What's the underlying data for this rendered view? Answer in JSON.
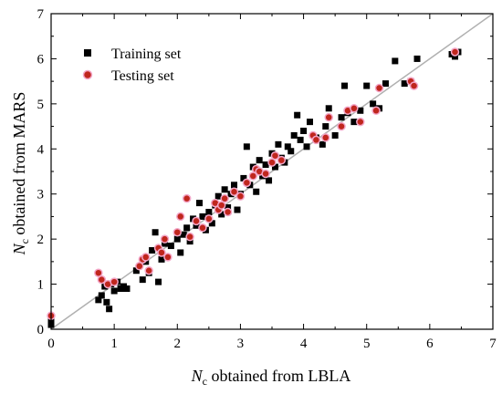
{
  "chart_data": {
    "type": "scatter",
    "xlabel": {
      "symbol": "N",
      "subscript": "c",
      "rest": " obtained from LBLA"
    },
    "ylabel": {
      "symbol": "N",
      "subscript": "c",
      "rest": " obtained from MARS"
    },
    "xlim": [
      0,
      7
    ],
    "ylim": [
      0,
      7
    ],
    "xticks": [
      "0",
      "1",
      "2",
      "3",
      "4",
      "5",
      "6",
      "7"
    ],
    "yticks": [
      "0",
      "1",
      "2",
      "3",
      "4",
      "5",
      "6",
      "7"
    ],
    "grid": false,
    "legend_position": "top-left",
    "reference_line": {
      "x": [
        0,
        7
      ],
      "y": [
        0,
        7
      ],
      "color": "#b0b0b0"
    },
    "series": [
      {
        "name": "Training set",
        "marker": "square",
        "color": "#000000",
        "points": [
          [
            0.0,
            0.1
          ],
          [
            0.0,
            0.2
          ],
          [
            0.75,
            0.65
          ],
          [
            0.8,
            0.75
          ],
          [
            0.85,
            0.95
          ],
          [
            0.88,
            0.6
          ],
          [
            0.92,
            0.45
          ],
          [
            0.95,
            1.0
          ],
          [
            1.0,
            0.85
          ],
          [
            1.05,
            1.05
          ],
          [
            1.1,
            0.9
          ],
          [
            1.15,
            0.95
          ],
          [
            1.2,
            0.9
          ],
          [
            1.35,
            1.3
          ],
          [
            1.45,
            1.1
          ],
          [
            1.5,
            1.5
          ],
          [
            1.55,
            1.25
          ],
          [
            1.6,
            1.75
          ],
          [
            1.65,
            2.15
          ],
          [
            1.7,
            1.05
          ],
          [
            1.75,
            1.55
          ],
          [
            1.8,
            1.9
          ],
          [
            1.9,
            1.85
          ],
          [
            2.0,
            2.0
          ],
          [
            2.05,
            1.7
          ],
          [
            2.1,
            2.1
          ],
          [
            2.15,
            2.25
          ],
          [
            2.2,
            1.95
          ],
          [
            2.25,
            2.45
          ],
          [
            2.3,
            2.3
          ],
          [
            2.35,
            2.8
          ],
          [
            2.4,
            2.5
          ],
          [
            2.45,
            2.2
          ],
          [
            2.5,
            2.6
          ],
          [
            2.55,
            2.35
          ],
          [
            2.6,
            2.75
          ],
          [
            2.65,
            2.95
          ],
          [
            2.7,
            2.55
          ],
          [
            2.75,
            3.1
          ],
          [
            2.8,
            2.7
          ],
          [
            2.85,
            3.0
          ],
          [
            2.9,
            3.2
          ],
          [
            2.95,
            2.65
          ],
          [
            3.0,
            3.0
          ],
          [
            3.05,
            3.35
          ],
          [
            3.1,
            4.05
          ],
          [
            3.15,
            3.2
          ],
          [
            3.2,
            3.6
          ],
          [
            3.25,
            3.05
          ],
          [
            3.3,
            3.75
          ],
          [
            3.35,
            3.4
          ],
          [
            3.4,
            3.65
          ],
          [
            3.45,
            3.3
          ],
          [
            3.5,
            3.9
          ],
          [
            3.55,
            3.6
          ],
          [
            3.6,
            4.1
          ],
          [
            3.65,
            3.8
          ],
          [
            3.7,
            3.7
          ],
          [
            3.75,
            4.05
          ],
          [
            3.8,
            3.95
          ],
          [
            3.85,
            4.3
          ],
          [
            3.9,
            4.75
          ],
          [
            3.95,
            4.2
          ],
          [
            4.0,
            4.4
          ],
          [
            4.05,
            4.05
          ],
          [
            4.1,
            4.6
          ],
          [
            4.2,
            4.25
          ],
          [
            4.3,
            4.1
          ],
          [
            4.35,
            4.5
          ],
          [
            4.4,
            4.9
          ],
          [
            4.5,
            4.3
          ],
          [
            4.6,
            4.7
          ],
          [
            4.65,
            5.4
          ],
          [
            4.7,
            4.8
          ],
          [
            4.8,
            4.6
          ],
          [
            4.9,
            4.85
          ],
          [
            5.0,
            5.4
          ],
          [
            5.1,
            5.0
          ],
          [
            5.2,
            4.9
          ],
          [
            5.3,
            5.45
          ],
          [
            5.45,
            5.95
          ],
          [
            5.6,
            5.45
          ],
          [
            5.7,
            5.5
          ],
          [
            5.8,
            6.0
          ],
          [
            6.35,
            6.1
          ],
          [
            6.4,
            6.05
          ],
          [
            6.45,
            6.15
          ]
        ]
      },
      {
        "name": "Testing set",
        "marker": "circle",
        "color": "#c0261d",
        "points": [
          [
            0.0,
            0.3
          ],
          [
            0.75,
            1.25
          ],
          [
            0.8,
            1.1
          ],
          [
            0.9,
            1.0
          ],
          [
            1.0,
            1.05
          ],
          [
            1.4,
            1.4
          ],
          [
            1.45,
            1.55
          ],
          [
            1.5,
            1.6
          ],
          [
            1.55,
            1.3
          ],
          [
            1.7,
            1.8
          ],
          [
            1.75,
            1.7
          ],
          [
            1.8,
            2.0
          ],
          [
            1.85,
            1.6
          ],
          [
            2.0,
            2.15
          ],
          [
            2.05,
            2.5
          ],
          [
            2.15,
            2.9
          ],
          [
            2.2,
            2.05
          ],
          [
            2.3,
            2.4
          ],
          [
            2.4,
            2.25
          ],
          [
            2.5,
            2.45
          ],
          [
            2.6,
            2.8
          ],
          [
            2.65,
            2.65
          ],
          [
            2.7,
            2.75
          ],
          [
            2.75,
            2.9
          ],
          [
            2.8,
            2.6
          ],
          [
            2.9,
            3.05
          ],
          [
            3.0,
            2.95
          ],
          [
            3.1,
            3.25
          ],
          [
            3.2,
            3.4
          ],
          [
            3.25,
            3.55
          ],
          [
            3.3,
            3.5
          ],
          [
            3.4,
            3.45
          ],
          [
            3.5,
            3.7
          ],
          [
            3.55,
            3.85
          ],
          [
            3.65,
            3.75
          ],
          [
            4.15,
            4.3
          ],
          [
            4.2,
            4.2
          ],
          [
            4.35,
            4.25
          ],
          [
            4.4,
            4.7
          ],
          [
            4.6,
            4.5
          ],
          [
            4.7,
            4.85
          ],
          [
            4.8,
            4.9
          ],
          [
            4.9,
            4.6
          ],
          [
            5.15,
            4.85
          ],
          [
            5.2,
            5.35
          ],
          [
            5.7,
            5.5
          ],
          [
            5.75,
            5.4
          ],
          [
            6.4,
            6.15
          ]
        ]
      }
    ]
  }
}
